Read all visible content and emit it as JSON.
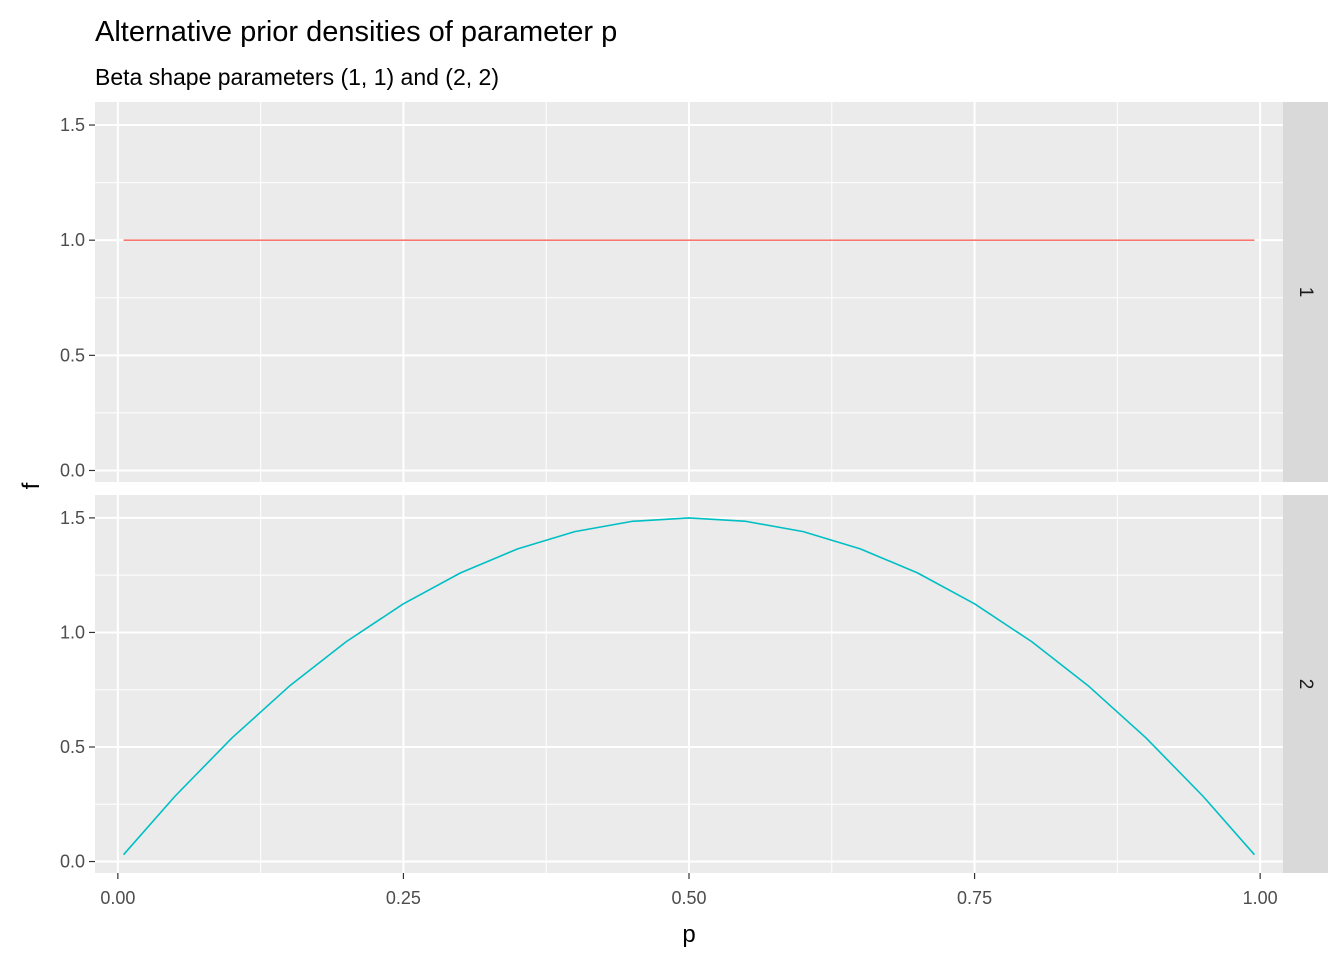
{
  "chart_data": {
    "type": "line",
    "title": "Alternative prior densities of parameter p",
    "subtitle": "Beta shape parameters (1, 1) and (2, 2)",
    "xlabel": "p",
    "ylabel": "f",
    "xlim": [
      -0.02,
      1.02
    ],
    "ylim": [
      -0.05,
      1.6
    ],
    "x_ticks": [
      "0.00",
      "0.25",
      "0.50",
      "0.75",
      "1.00"
    ],
    "x_tick_values": [
      0,
      0.25,
      0.5,
      0.75,
      1.0
    ],
    "y_ticks": [
      "0.0",
      "0.5",
      "1.0",
      "1.5"
    ],
    "y_tick_values": [
      0,
      0.5,
      1.0,
      1.5
    ],
    "grid": true,
    "legend": "none",
    "x": [
      0.005,
      0.05,
      0.1,
      0.15,
      0.2,
      0.25,
      0.3,
      0.35,
      0.4,
      0.45,
      0.5,
      0.55,
      0.6,
      0.65,
      0.7,
      0.75,
      0.8,
      0.85,
      0.9,
      0.95,
      0.995
    ],
    "facets": [
      {
        "strip": "1",
        "color": "#F8766D",
        "values": [
          1,
          1,
          1,
          1,
          1,
          1,
          1,
          1,
          1,
          1,
          1,
          1,
          1,
          1,
          1,
          1,
          1,
          1,
          1,
          1,
          1
        ]
      },
      {
        "strip": "2",
        "color": "#00BFC4",
        "values": [
          0.03,
          0.285,
          0.54,
          0.765,
          0.96,
          1.125,
          1.26,
          1.365,
          1.44,
          1.485,
          1.5,
          1.485,
          1.44,
          1.365,
          1.26,
          1.125,
          0.96,
          0.765,
          0.54,
          0.285,
          0.03
        ]
      }
    ]
  }
}
